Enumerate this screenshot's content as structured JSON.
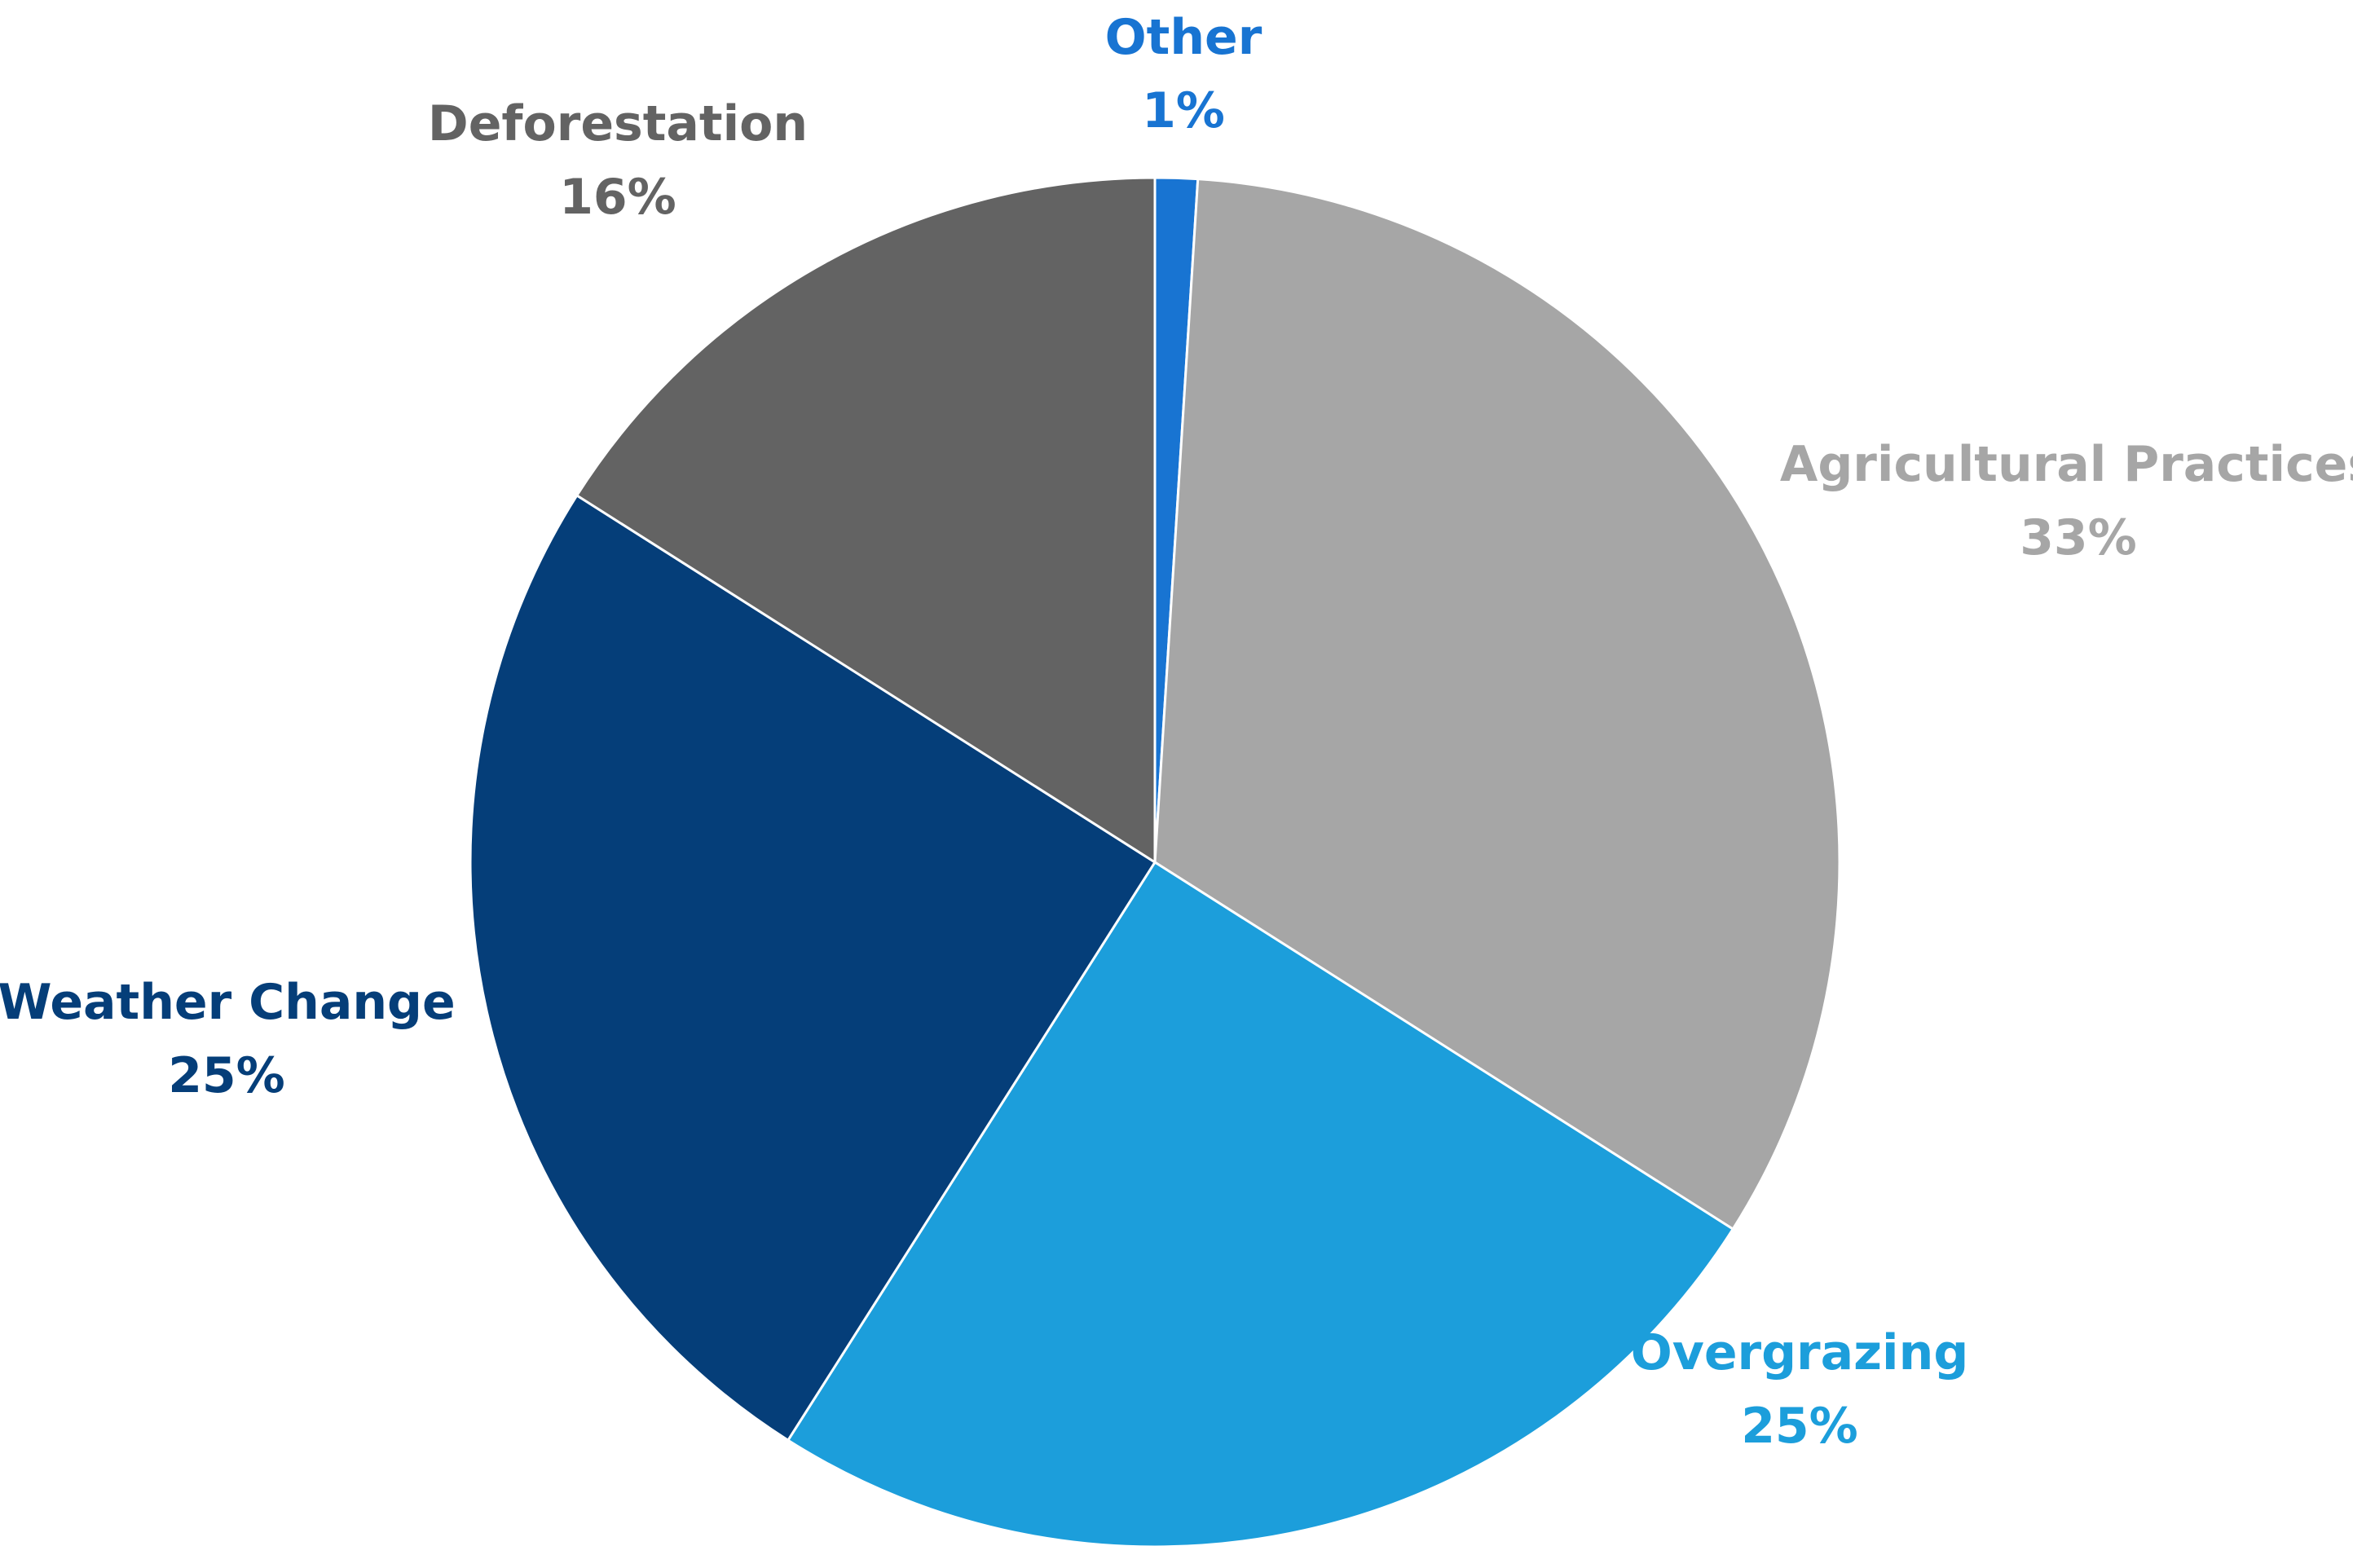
{
  "chart_data": {
    "type": "pie",
    "title": "",
    "start_angle_deg": 0,
    "direction": "clockwise",
    "slices": [
      {
        "name": "Other",
        "value": 1,
        "label": "1%",
        "color": "#1874d2",
        "label_color": "#1874d2"
      },
      {
        "name": "Agricultural Practices",
        "value": 33,
        "label": "33%",
        "color": "#a6a6a6",
        "label_color": "#a6a6a6"
      },
      {
        "name": "Overgrazing",
        "value": 25,
        "label": "25%",
        "color": "#1c9edb",
        "label_color": "#1c9edb"
      },
      {
        "name": "Weather Change",
        "value": 25,
        "label": "25%",
        "color": "#053e79",
        "label_color": "#053e79"
      },
      {
        "name": "Deforestation",
        "value": 16,
        "label": "16%",
        "color": "#636363",
        "label_color": "#636363"
      }
    ],
    "legend": "none",
    "data_labels": "outside"
  }
}
